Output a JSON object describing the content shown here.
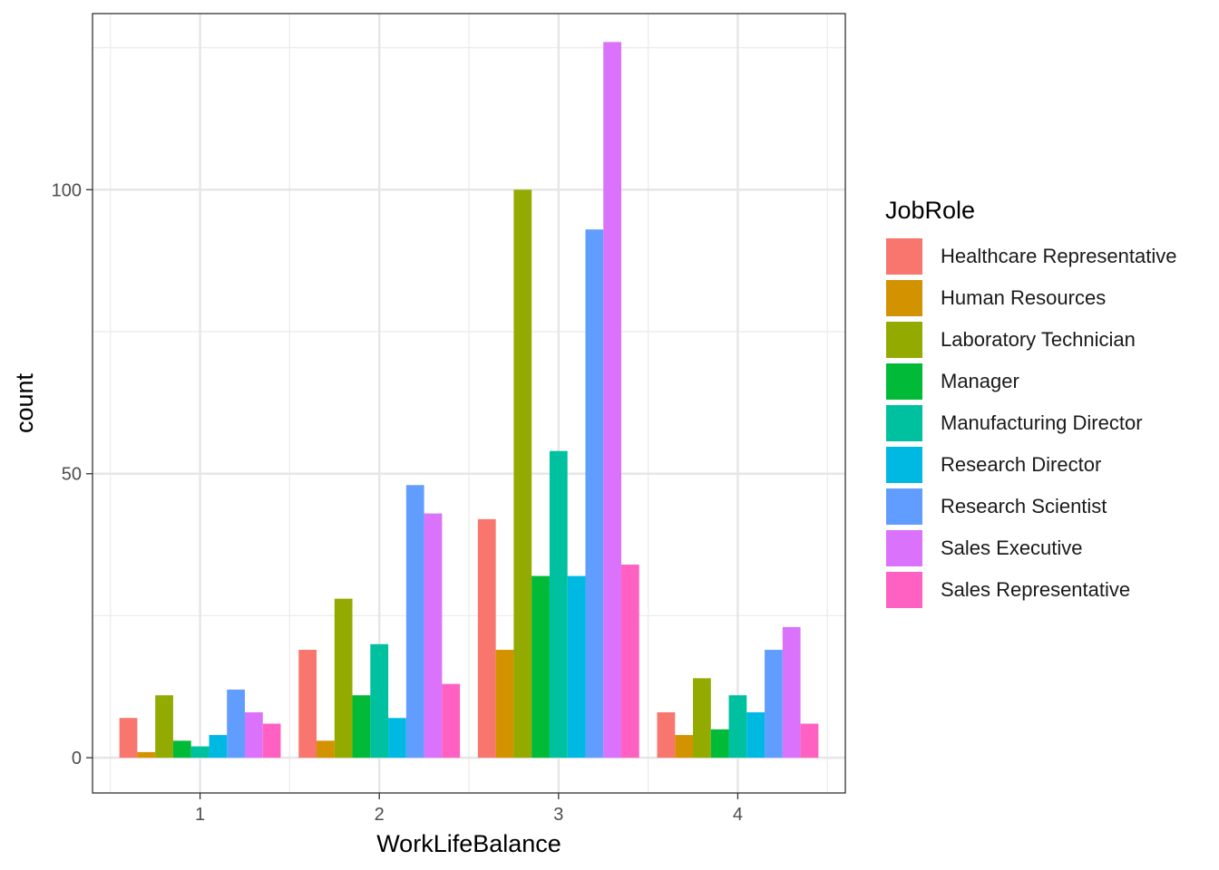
{
  "chart_data": {
    "type": "bar",
    "xlabel": "WorkLifeBalance",
    "ylabel": "count",
    "categories": [
      "1",
      "2",
      "3",
      "4"
    ],
    "yticks": [
      0,
      50,
      100
    ],
    "ylim": [
      -6.2,
      131
    ],
    "grid": true,
    "legend": {
      "title": "JobRole",
      "position": "right"
    },
    "series": [
      {
        "name": "Healthcare Representative",
        "color": "#F8766D",
        "values": [
          7,
          19,
          42,
          8
        ]
      },
      {
        "name": "Human Resources",
        "color": "#D39200",
        "values": [
          1,
          3,
          19,
          4
        ]
      },
      {
        "name": "Laboratory Technician",
        "color": "#93AA00",
        "values": [
          11,
          28,
          100,
          14
        ]
      },
      {
        "name": "Manager",
        "color": "#00BA38",
        "values": [
          3,
          11,
          32,
          5
        ]
      },
      {
        "name": "Manufacturing Director",
        "color": "#00C19F",
        "values": [
          2,
          20,
          54,
          11
        ]
      },
      {
        "name": "Research Director",
        "color": "#00B9E3",
        "values": [
          4,
          7,
          32,
          8
        ]
      },
      {
        "name": "Research Scientist",
        "color": "#619CFF",
        "values": [
          12,
          48,
          93,
          19
        ]
      },
      {
        "name": "Sales Executive",
        "color": "#DB72FB",
        "values": [
          8,
          43,
          126,
          23
        ]
      },
      {
        "name": "Sales Representative",
        "color": "#FF61C3",
        "values": [
          6,
          13,
          34,
          6
        ]
      }
    ]
  }
}
